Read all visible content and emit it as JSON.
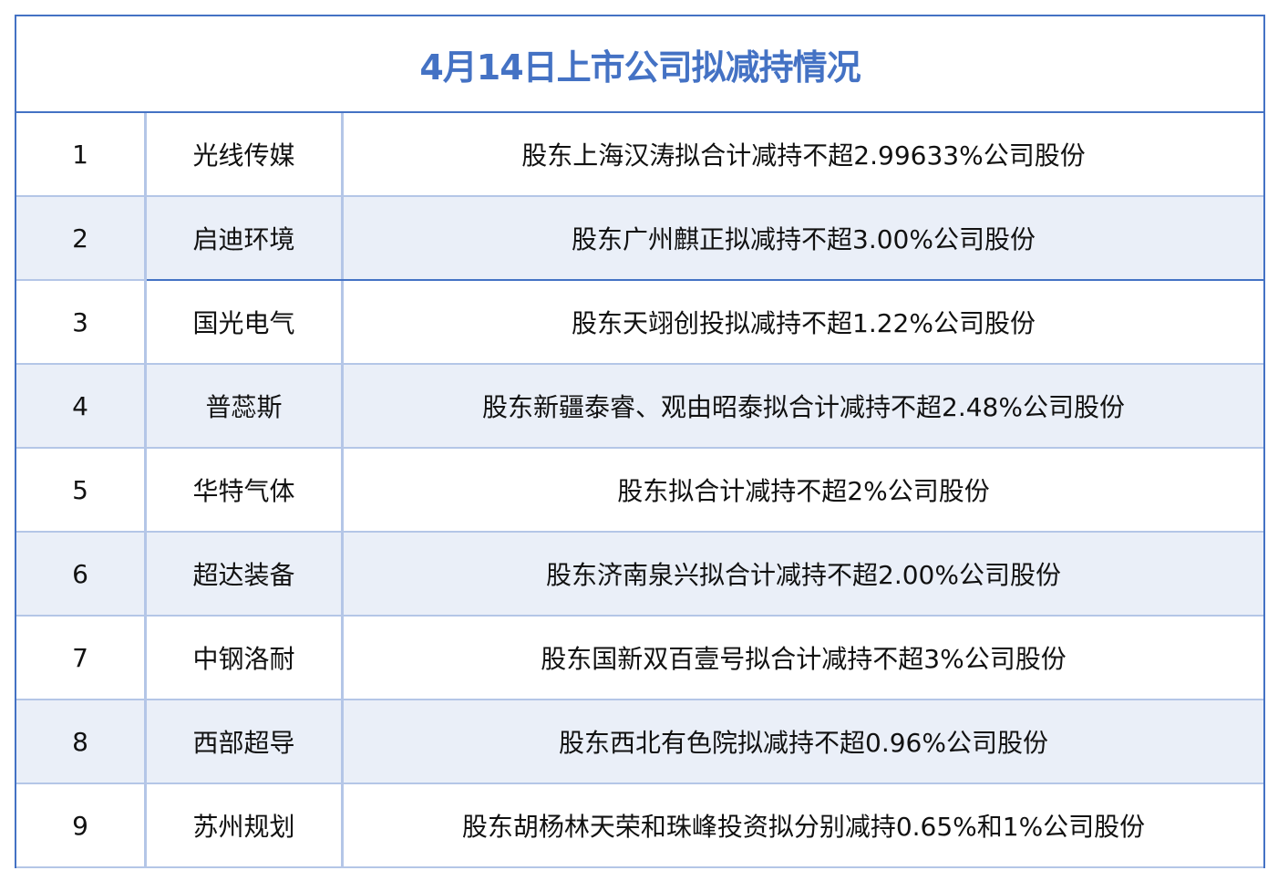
{
  "title": "4月14日上市公司拟减持情况",
  "colors": {
    "border": "#4472C4",
    "grid": "#B4C6E7",
    "stripe": "#EAEFF8",
    "title": "#4472C4"
  },
  "rows": [
    {
      "no": "1",
      "company": "光线传媒",
      "detail": "股东上海汉涛拟合计减持不超2.99633%公司股份"
    },
    {
      "no": "2",
      "company": "启迪环境",
      "detail": "股东广州麒正拟减持不超3.00%公司股份"
    },
    {
      "no": "3",
      "company": "国光电气",
      "detail": "股东天翊创投拟减持不超1.22%公司股份"
    },
    {
      "no": "4",
      "company": "普蕊斯",
      "detail": "股东新疆泰睿、观由昭泰拟合计减持不超2.48%公司股份"
    },
    {
      "no": "5",
      "company": "华特气体",
      "detail": "股东拟合计减持不超2%公司股份"
    },
    {
      "no": "6",
      "company": "超达装备",
      "detail": "股东济南泉兴拟合计减持不超2.00%公司股份"
    },
    {
      "no": "7",
      "company": "中钢洛耐",
      "detail": "股东国新双百壹号拟合计减持不超3%公司股份"
    },
    {
      "no": "8",
      "company": "西部超导",
      "detail": "股东西北有色院拟减持不超0.96%公司股份"
    },
    {
      "no": "9",
      "company": "苏州规划",
      "detail": "股东胡杨林天荣和珠峰投资拟分别减持0.65%和1%公司股份"
    }
  ]
}
